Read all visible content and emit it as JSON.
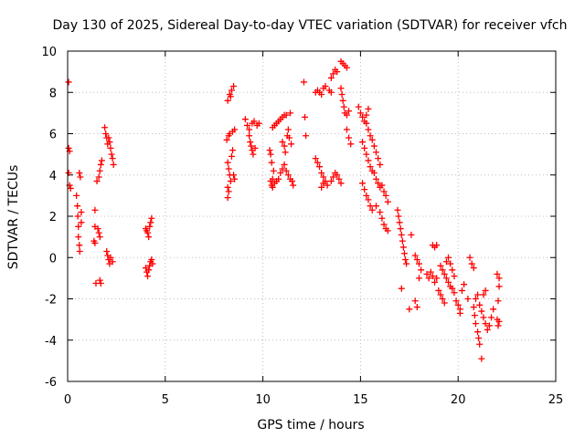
{
  "chart_data": {
    "type": "scatter",
    "title": "Day 130 of 2025, Sidereal Day-to-day VTEC variation (SDTVAR) for receiver vfch",
    "xlabel": "GPS time / hours",
    "ylabel": "SDTVAR / TECUs",
    "xlim": [
      0,
      25
    ],
    "ylim": [
      -6,
      10
    ],
    "xticks": [
      "0",
      "5",
      "10",
      "15",
      "20",
      "25"
    ],
    "yticks": [
      "-6",
      "-4",
      "-2",
      "0",
      "2",
      "4",
      "6",
      "8",
      "10"
    ],
    "grid": true,
    "marker": "+",
    "colors": {
      "points": "#ff0000",
      "grid": "#bdbdbd",
      "axes": "#000000"
    },
    "series": [
      {
        "name": "vfch",
        "points": [
          [
            0.05,
            8.5
          ],
          [
            0.05,
            5.3
          ],
          [
            0.1,
            5.15
          ],
          [
            0.05,
            4.1
          ],
          [
            0.1,
            3.5
          ],
          [
            0.15,
            3.35
          ],
          [
            0.45,
            3.0
          ],
          [
            0.5,
            2.5
          ],
          [
            0.52,
            2.0
          ],
          [
            0.55,
            1.5
          ],
          [
            0.55,
            1.0
          ],
          [
            0.6,
            0.6
          ],
          [
            0.62,
            0.3
          ],
          [
            0.6,
            4.1
          ],
          [
            0.65,
            3.9
          ],
          [
            0.7,
            2.2
          ],
          [
            0.7,
            1.7
          ],
          [
            1.4,
            2.3
          ],
          [
            1.4,
            1.5
          ],
          [
            1.35,
            0.8
          ],
          [
            1.4,
            0.7
          ],
          [
            1.45,
            -1.25
          ],
          [
            1.65,
            -1.1
          ],
          [
            1.7,
            -1.25
          ],
          [
            1.55,
            1.4
          ],
          [
            1.6,
            1.2
          ],
          [
            1.65,
            1.0
          ],
          [
            1.5,
            3.7
          ],
          [
            1.6,
            3.9
          ],
          [
            1.65,
            4.2
          ],
          [
            1.7,
            4.5
          ],
          [
            1.75,
            4.7
          ],
          [
            1.9,
            6.3
          ],
          [
            1.95,
            6.0
          ],
          [
            2.0,
            5.8
          ],
          [
            2.05,
            5.5
          ],
          [
            2.1,
            5.8
          ],
          [
            2.15,
            5.6
          ],
          [
            2.2,
            5.3
          ],
          [
            2.25,
            5.0
          ],
          [
            2.3,
            4.8
          ],
          [
            2.35,
            4.5
          ],
          [
            2.0,
            0.3
          ],
          [
            2.05,
            0.1
          ],
          [
            2.1,
            -0.1
          ],
          [
            2.15,
            -0.3
          ],
          [
            2.2,
            0.0
          ],
          [
            2.3,
            -0.2
          ],
          [
            4.0,
            1.4
          ],
          [
            4.05,
            1.3
          ],
          [
            4.1,
            1.2
          ],
          [
            4.15,
            1.0
          ],
          [
            4.2,
            1.5
          ],
          [
            4.25,
            1.7
          ],
          [
            4.3,
            1.9
          ],
          [
            4.0,
            -0.5
          ],
          [
            4.05,
            -0.7
          ],
          [
            4.1,
            -0.9
          ],
          [
            4.15,
            -0.6
          ],
          [
            4.2,
            -0.4
          ],
          [
            4.25,
            -0.2
          ],
          [
            4.3,
            -0.1
          ],
          [
            4.35,
            -0.3
          ],
          [
            8.2,
            7.6
          ],
          [
            8.3,
            7.9
          ],
          [
            8.4,
            8.1
          ],
          [
            8.5,
            8.3
          ],
          [
            8.35,
            7.8
          ],
          [
            8.15,
            5.7
          ],
          [
            8.25,
            5.9
          ],
          [
            8.3,
            6.0
          ],
          [
            8.45,
            6.1
          ],
          [
            8.55,
            6.2
          ],
          [
            8.2,
            4.6
          ],
          [
            8.25,
            4.3
          ],
          [
            8.3,
            4.0
          ],
          [
            8.35,
            3.7
          ],
          [
            8.2,
            3.4
          ],
          [
            8.25,
            3.2
          ],
          [
            8.2,
            2.9
          ],
          [
            8.4,
            4.9
          ],
          [
            8.45,
            5.2
          ],
          [
            8.5,
            4.0
          ],
          [
            8.55,
            3.8
          ],
          [
            9.1,
            6.7
          ],
          [
            9.2,
            6.4
          ],
          [
            9.3,
            6.2
          ],
          [
            9.45,
            6.5
          ],
          [
            9.55,
            6.6
          ],
          [
            9.7,
            6.4
          ],
          [
            9.8,
            6.5
          ],
          [
            9.3,
            5.9
          ],
          [
            9.35,
            5.6
          ],
          [
            9.4,
            5.4
          ],
          [
            9.45,
            5.2
          ],
          [
            9.5,
            5.0
          ],
          [
            9.6,
            5.3
          ],
          [
            10.35,
            5.2
          ],
          [
            10.4,
            5.0
          ],
          [
            10.45,
            4.6
          ],
          [
            10.55,
            4.2
          ],
          [
            10.5,
            3.8
          ],
          [
            10.4,
            3.7
          ],
          [
            10.45,
            3.5
          ],
          [
            10.5,
            3.4
          ],
          [
            10.6,
            3.6
          ],
          [
            10.7,
            3.7
          ],
          [
            10.8,
            3.8
          ],
          [
            10.9,
            4.1
          ],
          [
            11.0,
            4.3
          ],
          [
            11.1,
            4.5
          ],
          [
            11.2,
            4.2
          ],
          [
            11.3,
            4.0
          ],
          [
            11.4,
            3.8
          ],
          [
            11.5,
            3.7
          ],
          [
            11.55,
            3.5
          ],
          [
            10.5,
            6.3
          ],
          [
            10.6,
            6.4
          ],
          [
            10.7,
            6.5
          ],
          [
            10.8,
            6.6
          ],
          [
            10.9,
            6.7
          ],
          [
            11.0,
            6.8
          ],
          [
            11.1,
            6.9
          ],
          [
            11.2,
            6.9
          ],
          [
            11.4,
            7.0
          ],
          [
            11.0,
            5.6
          ],
          [
            11.1,
            5.4
          ],
          [
            11.15,
            5.1
          ],
          [
            11.25,
            5.9
          ],
          [
            11.3,
            6.2
          ],
          [
            11.35,
            5.8
          ],
          [
            11.45,
            5.5
          ],
          [
            12.1,
            8.5
          ],
          [
            12.15,
            6.8
          ],
          [
            12.2,
            5.9
          ],
          [
            12.7,
            4.8
          ],
          [
            12.8,
            4.6
          ],
          [
            12.9,
            4.4
          ],
          [
            13.0,
            4.1
          ],
          [
            13.1,
            3.9
          ],
          [
            13.2,
            3.7
          ],
          [
            13.3,
            3.5
          ],
          [
            13.0,
            3.4
          ],
          [
            13.1,
            3.6
          ],
          [
            13.5,
            3.7
          ],
          [
            13.6,
            3.9
          ],
          [
            13.7,
            4.1
          ],
          [
            13.8,
            4.0
          ],
          [
            13.9,
            3.8
          ],
          [
            14.0,
            3.6
          ],
          [
            12.7,
            8.0
          ],
          [
            12.8,
            8.1
          ],
          [
            12.9,
            8.0
          ],
          [
            13.0,
            7.9
          ],
          [
            13.1,
            8.2
          ],
          [
            13.2,
            8.3
          ],
          [
            13.4,
            8.1
          ],
          [
            13.5,
            8.0
          ],
          [
            13.5,
            8.7
          ],
          [
            13.6,
            8.9
          ],
          [
            13.7,
            9.1
          ],
          [
            13.8,
            9.0
          ],
          [
            14.0,
            9.5
          ],
          [
            14.1,
            9.4
          ],
          [
            14.2,
            9.3
          ],
          [
            14.3,
            9.2
          ],
          [
            14.0,
            8.2
          ],
          [
            14.05,
            7.9
          ],
          [
            14.1,
            7.6
          ],
          [
            14.15,
            7.3
          ],
          [
            14.2,
            7.0
          ],
          [
            14.3,
            6.9
          ],
          [
            14.4,
            7.1
          ],
          [
            14.3,
            6.2
          ],
          [
            14.4,
            5.8
          ],
          [
            14.5,
            5.5
          ],
          [
            14.9,
            7.3
          ],
          [
            15.0,
            7.0
          ],
          [
            15.1,
            6.8
          ],
          [
            15.2,
            6.6
          ],
          [
            15.3,
            6.9
          ],
          [
            15.4,
            7.2
          ],
          [
            15.1,
            5.6
          ],
          [
            15.2,
            5.3
          ],
          [
            15.3,
            5.0
          ],
          [
            15.4,
            4.7
          ],
          [
            15.5,
            4.4
          ],
          [
            15.6,
            4.2
          ],
          [
            15.7,
            4.1
          ],
          [
            15.8,
            3.8
          ],
          [
            15.9,
            3.6
          ],
          [
            16.0,
            3.4
          ],
          [
            15.3,
            6.5
          ],
          [
            15.4,
            6.2
          ],
          [
            15.5,
            5.9
          ],
          [
            15.6,
            5.7
          ],
          [
            15.7,
            5.4
          ],
          [
            15.8,
            5.1
          ],
          [
            15.9,
            4.8
          ],
          [
            16.0,
            4.5
          ],
          [
            15.1,
            3.6
          ],
          [
            15.2,
            3.3
          ],
          [
            15.3,
            3.0
          ],
          [
            15.4,
            2.8
          ],
          [
            15.5,
            2.5
          ],
          [
            15.6,
            2.3
          ],
          [
            15.8,
            2.5
          ],
          [
            16.0,
            2.2
          ],
          [
            16.1,
            1.9
          ],
          [
            16.2,
            1.6
          ],
          [
            16.3,
            1.4
          ],
          [
            16.4,
            1.3
          ],
          [
            16.1,
            3.5
          ],
          [
            16.2,
            3.2
          ],
          [
            16.3,
            3.0
          ],
          [
            16.4,
            2.7
          ],
          [
            16.9,
            2.3
          ],
          [
            16.95,
            2.0
          ],
          [
            17.0,
            1.7
          ],
          [
            17.05,
            1.4
          ],
          [
            17.1,
            1.1
          ],
          [
            17.15,
            0.8
          ],
          [
            17.2,
            0.5
          ],
          [
            17.25,
            0.2
          ],
          [
            17.3,
            -0.1
          ],
          [
            17.35,
            -0.3
          ],
          [
            17.1,
            -1.5
          ],
          [
            17.6,
            1.1
          ],
          [
            17.5,
            -2.5
          ],
          [
            17.9,
            -2.4
          ],
          [
            17.8,
            -2.1
          ],
          [
            17.8,
            0.1
          ],
          [
            17.9,
            -0.1
          ],
          [
            18.0,
            -0.3
          ],
          [
            18.1,
            -0.6
          ],
          [
            18.0,
            -1.0
          ],
          [
            18.4,
            -0.8
          ],
          [
            18.5,
            -1.0
          ],
          [
            18.6,
            -0.7
          ],
          [
            18.7,
            -0.9
          ],
          [
            18.8,
            -1.2
          ],
          [
            18.9,
            -1.0
          ],
          [
            18.7,
            0.6
          ],
          [
            18.8,
            0.5
          ],
          [
            18.9,
            0.6
          ],
          [
            19.0,
            -1.6
          ],
          [
            19.1,
            -1.8
          ],
          [
            19.2,
            -2.0
          ],
          [
            19.3,
            -2.2
          ],
          [
            19.1,
            -0.4
          ],
          [
            19.2,
            -0.6
          ],
          [
            19.3,
            -0.8
          ],
          [
            19.4,
            -1.0
          ],
          [
            19.5,
            -1.2
          ],
          [
            19.6,
            -1.4
          ],
          [
            19.7,
            -1.5
          ],
          [
            19.8,
            -1.7
          ],
          [
            19.4,
            -0.2
          ],
          [
            19.5,
            0.0
          ],
          [
            19.6,
            -0.3
          ],
          [
            19.7,
            -0.6
          ],
          [
            19.8,
            -0.9
          ],
          [
            19.9,
            -2.1
          ],
          [
            20.0,
            -2.3
          ],
          [
            20.1,
            -2.5
          ],
          [
            20.1,
            -2.7
          ],
          [
            20.2,
            -1.6
          ],
          [
            20.3,
            -1.3
          ],
          [
            20.5,
            -2.0
          ],
          [
            20.6,
            0.0
          ],
          [
            20.7,
            -0.3
          ],
          [
            20.8,
            -0.5
          ],
          [
            20.8,
            -2.4
          ],
          [
            20.85,
            -2.8
          ],
          [
            20.9,
            -3.2
          ],
          [
            21.0,
            -3.6
          ],
          [
            21.05,
            -3.9
          ],
          [
            21.1,
            -4.2
          ],
          [
            20.9,
            -2.0
          ],
          [
            21.0,
            -1.8
          ],
          [
            21.1,
            -2.3
          ],
          [
            21.2,
            -2.6
          ],
          [
            21.3,
            -2.9
          ],
          [
            21.4,
            -3.2
          ],
          [
            21.5,
            -3.5
          ],
          [
            21.6,
            -3.3
          ],
          [
            21.7,
            -2.9
          ],
          [
            21.8,
            -2.5
          ],
          [
            21.3,
            -1.8
          ],
          [
            21.4,
            -1.6
          ],
          [
            21.2,
            -4.9
          ],
          [
            22.0,
            -0.8
          ],
          [
            22.1,
            -1.0
          ],
          [
            22.1,
            -1.4
          ],
          [
            22.05,
            -2.1
          ],
          [
            22.0,
            -3.0
          ],
          [
            22.05,
            -3.3
          ],
          [
            22.1,
            -3.1
          ]
        ]
      }
    ]
  }
}
